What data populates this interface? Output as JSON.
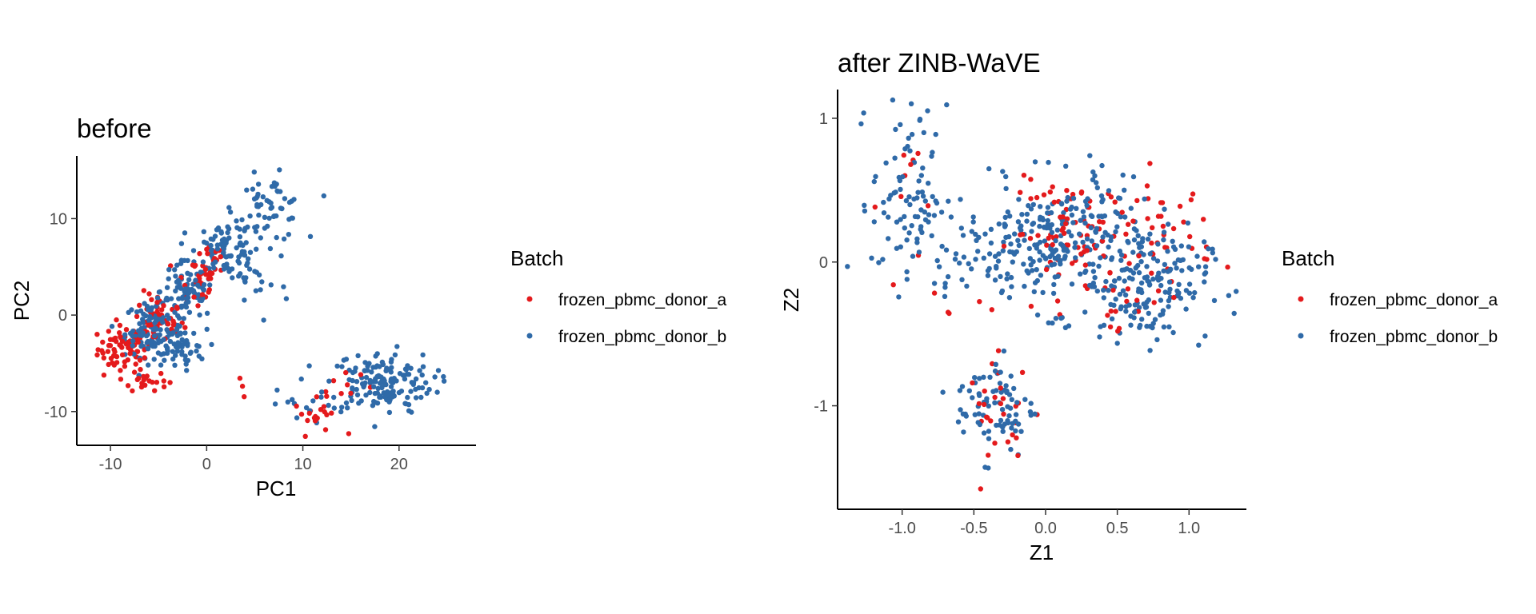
{
  "chart_data": [
    {
      "type": "scatter",
      "title": "before",
      "xlabel": "PC1",
      "ylabel": "PC2",
      "xlim": [
        -13.5,
        28
      ],
      "ylim": [
        -13.5,
        16.5
      ],
      "xticks": [
        -10,
        0,
        10,
        20
      ],
      "xtick_labels": [
        "-10",
        "0",
        "10",
        "20"
      ],
      "yticks": [
        -10,
        0,
        10
      ],
      "ytick_labels": [
        "-10",
        "0",
        "10"
      ],
      "grid": false,
      "legend": {
        "title": "Batch",
        "placement": "right",
        "entries": [
          "frozen_pbmc_donor_a",
          "frozen_pbmc_donor_b"
        ]
      },
      "series": [
        {
          "name": "frozen_pbmc_donor_a",
          "color": "#e41a1c",
          "clusters": [
            {
              "center": [
                -8.5,
                -3.5
              ],
              "spread": [
                1.4,
                1.2
              ],
              "count": 75
            },
            {
              "center": [
                -5.0,
                -0.5
              ],
              "spread": [
                1.3,
                1.4
              ],
              "count": 45
            },
            {
              "center": [
                -1.0,
                3.5
              ],
              "spread": [
                1.2,
                1.5
              ],
              "count": 30
            },
            {
              "center": [
                1.0,
                6.0
              ],
              "spread": [
                1.0,
                1.0
              ],
              "count": 15
            },
            {
              "center": [
                -6.5,
                -6.8
              ],
              "spread": [
                1.2,
                0.5
              ],
              "count": 22
            },
            {
              "center": [
                11.5,
                -10.5
              ],
              "spread": [
                1.2,
                0.9
              ],
              "count": 20
            },
            {
              "center": [
                14.5,
                -7.0
              ],
              "spread": [
                1.4,
                1.2
              ],
              "count": 8
            },
            {
              "center": [
                3.5,
                -7.5
              ],
              "spread": [
                0.5,
                1.2
              ],
              "count": 3
            }
          ]
        },
        {
          "name": "frozen_pbmc_donor_b",
          "color": "#2f6aa8",
          "clusters": [
            {
              "center": [
                -5.5,
                -1.5
              ],
              "spread": [
                1.5,
                1.4
              ],
              "count": 120
            },
            {
              "center": [
                -2.0,
                2.5
              ],
              "spread": [
                1.4,
                1.5
              ],
              "count": 80
            },
            {
              "center": [
                2.0,
                7.0
              ],
              "spread": [
                1.5,
                1.5
              ],
              "count": 70
            },
            {
              "center": [
                6.5,
                11.0
              ],
              "spread": [
                1.8,
                1.7
              ],
              "count": 60
            },
            {
              "center": [
                -3.0,
                -3.5
              ],
              "spread": [
                1.5,
                1.0
              ],
              "count": 45
            },
            {
              "center": [
                4.5,
                4.0
              ],
              "spread": [
                2.0,
                2.5
              ],
              "count": 30
            },
            {
              "center": [
                18.0,
                -7.0
              ],
              "spread": [
                2.8,
                1.6
              ],
              "count": 160
            },
            {
              "center": [
                9.5,
                -9.5
              ],
              "spread": [
                1.3,
                0.9
              ],
              "count": 10
            }
          ]
        }
      ]
    },
    {
      "type": "scatter",
      "title": "after ZINB-WaVE",
      "xlabel": "Z1",
      "ylabel": "Z2",
      "xlim": [
        -1.45,
        1.4
      ],
      "ylim": [
        -1.72,
        1.2
      ],
      "xticks": [
        -1.0,
        -0.5,
        0.0,
        0.5,
        1.0
      ],
      "xtick_labels": [
        "-1.0",
        "-0.5",
        "0.0",
        "0.5",
        "1.0"
      ],
      "yticks": [
        -1,
        0,
        1
      ],
      "ytick_labels": [
        "-1",
        "0",
        "1"
      ],
      "grid": false,
      "legend": {
        "title": "Batch",
        "placement": "right",
        "entries": [
          "frozen_pbmc_donor_a",
          "frozen_pbmc_donor_b"
        ]
      },
      "series": [
        {
          "name": "frozen_pbmc_donor_a",
          "color": "#e41a1c",
          "clusters": [
            {
              "center": [
                0.2,
                0.2
              ],
              "spread": [
                0.22,
                0.18
              ],
              "count": 75
            },
            {
              "center": [
                0.8,
                0.2
              ],
              "spread": [
                0.18,
                0.22
              ],
              "count": 45
            },
            {
              "center": [
                -0.3,
                -1.05
              ],
              "spread": [
                0.12,
                0.18
              ],
              "count": 28
            },
            {
              "center": [
                -0.95,
                0.45
              ],
              "spread": [
                0.1,
                0.28
              ],
              "count": 10
            },
            {
              "center": [
                0.55,
                -0.4
              ],
              "spread": [
                0.15,
                0.15
              ],
              "count": 10
            },
            {
              "center": [
                -0.65,
                -0.3
              ],
              "spread": [
                0.1,
                0.1
              ],
              "count": 5
            }
          ]
        },
        {
          "name": "frozen_pbmc_donor_b",
          "color": "#2f6aa8",
          "clusters": [
            {
              "center": [
                0.05,
                0.1
              ],
              "spread": [
                0.3,
                0.22
              ],
              "count": 220
            },
            {
              "center": [
                0.7,
                -0.15
              ],
              "spread": [
                0.22,
                0.2
              ],
              "count": 170
            },
            {
              "center": [
                -0.95,
                0.45
              ],
              "spread": [
                0.13,
                0.32
              ],
              "count": 90
            },
            {
              "center": [
                -0.35,
                -1.0
              ],
              "spread": [
                0.14,
                0.18
              ],
              "count": 80
            },
            {
              "center": [
                -0.5,
                0.1
              ],
              "spread": [
                0.18,
                0.2
              ],
              "count": 30
            },
            {
              "center": [
                0.4,
                0.4
              ],
              "spread": [
                0.2,
                0.15
              ],
              "count": 30
            }
          ]
        }
      ]
    }
  ]
}
